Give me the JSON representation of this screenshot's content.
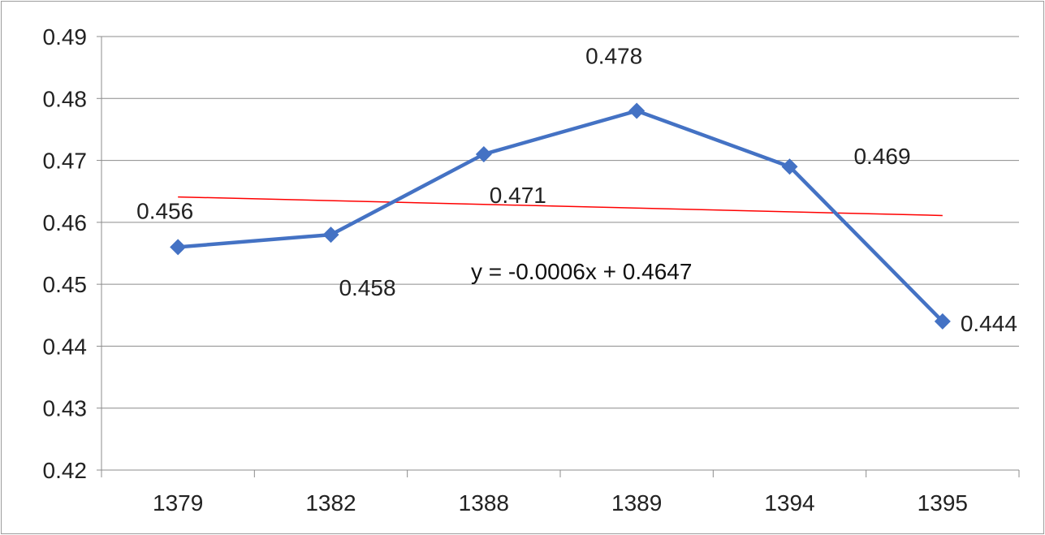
{
  "chart_data": {
    "type": "line",
    "categories": [
      "1379",
      "1382",
      "1388",
      "1389",
      "1394",
      "1395"
    ],
    "series": [
      {
        "values": [
          0.456,
          0.458,
          0.471,
          0.478,
          0.469,
          0.444
        ],
        "color": "#4472C4",
        "marker": "diamond",
        "data_labels": [
          "0.456",
          "0.458",
          "0.471",
          "0.478",
          "0.469",
          "0.444"
        ]
      }
    ],
    "trendline": {
      "type": "linear",
      "color": "#FF0000",
      "slope": -0.0006,
      "intercept": 0.4647,
      "equation": "y = -0.0006x + 0.4647"
    },
    "ylim": [
      0.42,
      0.49
    ],
    "yticks": [
      "0.42",
      "0.43",
      "0.44",
      "0.45",
      "0.46",
      "0.47",
      "0.48",
      "0.49"
    ],
    "grid": true,
    "legend": "none",
    "gridline_color": "#8c8c8c"
  }
}
